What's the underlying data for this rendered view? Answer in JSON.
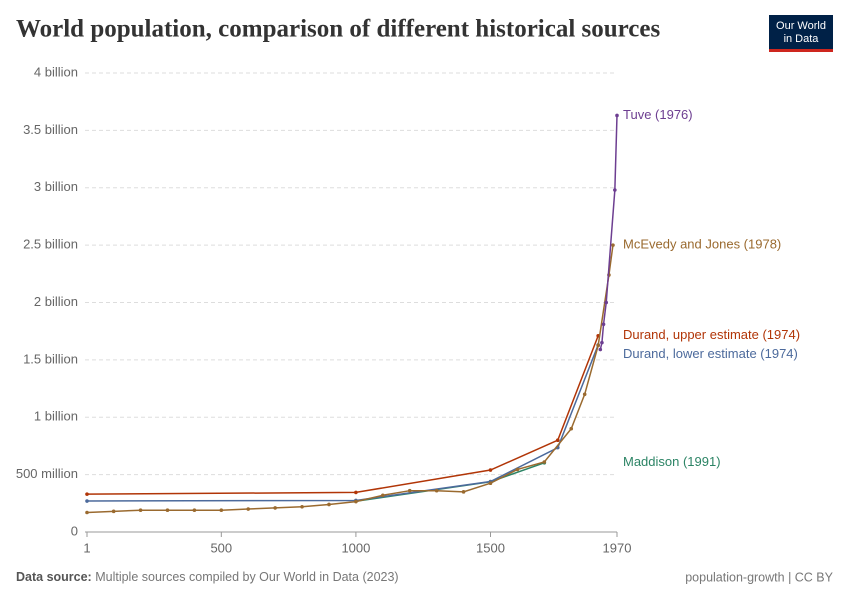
{
  "chart_data": {
    "type": "line",
    "title": "World population, comparison of different historical sources",
    "xlim": [
      1,
      1970
    ],
    "xticks": [
      1,
      500,
      1000,
      1500,
      1970
    ],
    "ylim": [
      0,
      4000000000
    ],
    "yticks": [
      0,
      {
        "value": 500000000,
        "label": "500 million"
      },
      {
        "value": 1000000000,
        "label": "1 billion"
      },
      {
        "value": 1500000000,
        "label": "1.5 billion"
      },
      {
        "value": 2000000000,
        "label": "2 billion"
      },
      {
        "value": 2500000000,
        "label": "2.5 billion"
      },
      {
        "value": 3000000000,
        "label": "3 billion"
      },
      {
        "value": 3500000000,
        "label": "3.5 billion"
      },
      {
        "value": 4000000000,
        "label": "4 billion"
      }
    ],
    "grid": true,
    "series": [
      {
        "name": "Maddison (1991)",
        "color": "#2c8465",
        "x": [
          1000,
          1500,
          1700
        ],
        "values": [
          268000000,
          438000000,
          603000000
        ]
      },
      {
        "name": "Durand, lower estimate (1974)",
        "color": "#4c6a9c",
        "x": [
          1,
          1000,
          1500,
          1750,
          1900
        ],
        "values": [
          270000000,
          275000000,
          440000000,
          735000000,
          1630000000
        ]
      },
      {
        "name": "Durand, upper estimate (1974)",
        "color": "#b13507",
        "x": [
          1,
          1000,
          1500,
          1750,
          1900
        ],
        "values": [
          330000000,
          345000000,
          540000000,
          800000000,
          1710000000
        ]
      },
      {
        "name": "McEvedy and Jones (1978)",
        "color": "#9a6a2f",
        "x": [
          1,
          100,
          200,
          300,
          400,
          500,
          600,
          700,
          800,
          900,
          1000,
          1100,
          1200,
          1300,
          1400,
          1500,
          1600,
          1700,
          1800,
          1850,
          1900,
          1940,
          1955
        ],
        "values": [
          170000000,
          180000000,
          190000000,
          190000000,
          190000000,
          190000000,
          200000000,
          210000000,
          220000000,
          240000000,
          265000000,
          320000000,
          360000000,
          360000000,
          350000000,
          425000000,
          545000000,
          610000000,
          900000000,
          1200000000,
          1625000000,
          2240000000,
          2500000000
        ]
      },
      {
        "name": "Tuve (1976)",
        "color": "#6d3e91",
        "x": [
          1908,
          1914,
          1920,
          1930,
          1962,
          1970
        ],
        "values": [
          1590000000,
          1650000000,
          1810000000,
          2000000000,
          2980000000,
          3630000000
        ]
      }
    ]
  },
  "logo": [
    "Our World",
    "in Data"
  ],
  "footer": {
    "source_label": "Data source:",
    "source": "Multiple sources compiled by Our World in Data (2023)",
    "license": "population-growth | CC BY"
  }
}
